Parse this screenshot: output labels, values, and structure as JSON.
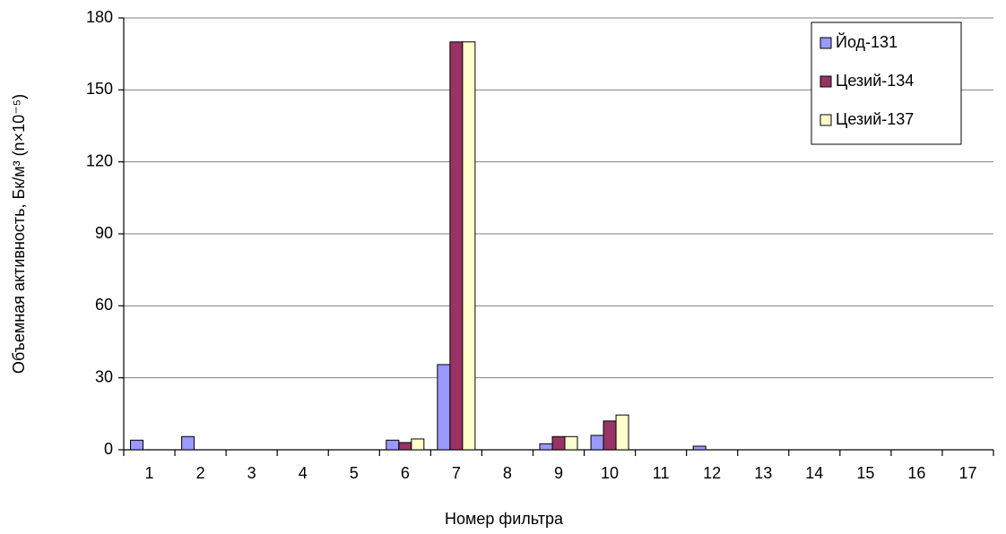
{
  "chart_data": {
    "type": "bar",
    "x_label": "Номер фильтра",
    "y_label": "Объемная активность, Бк/м³ (n×10⁻⁵)",
    "categories": [
      "1",
      "2",
      "3",
      "4",
      "5",
      "6",
      "7",
      "8",
      "9",
      "10",
      "11",
      "12",
      "13",
      "14",
      "15",
      "16",
      "17"
    ],
    "series": [
      {
        "name": "Йод-131",
        "color": "#9999ff",
        "values": [
          4,
          5.5,
          0,
          0,
          0,
          4,
          35.5,
          0,
          2.5,
          6,
          0,
          1.5,
          0,
          0,
          0,
          0,
          0
        ]
      },
      {
        "name": "Цезий-134",
        "color": "#993366",
        "values": [
          0,
          0,
          0,
          0,
          0,
          3,
          170,
          0,
          5.5,
          12,
          0,
          0,
          0,
          0,
          0,
          0,
          0
        ]
      },
      {
        "name": "Цезий-137",
        "color": "#ffffcc",
        "values": [
          0,
          0,
          0,
          0,
          0,
          4.5,
          170,
          0,
          5.5,
          14.5,
          0,
          0,
          0,
          0,
          0,
          0,
          0
        ]
      }
    ],
    "ylim": [
      0,
      180
    ],
    "yticks": [
      0,
      30,
      60,
      90,
      120,
      150,
      180
    ],
    "grid": true,
    "legend": "top-right"
  }
}
